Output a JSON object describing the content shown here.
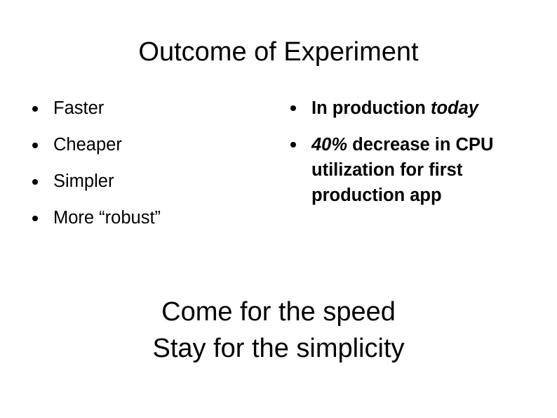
{
  "slide": {
    "title": "Outcome of Experiment",
    "left_bullets": [
      {
        "parts": [
          {
            "text": "Faster",
            "italic": false
          }
        ]
      },
      {
        "parts": [
          {
            "text": "Cheaper",
            "italic": false
          }
        ]
      },
      {
        "parts": [
          {
            "text": "Simpler",
            "italic": false
          }
        ]
      },
      {
        "parts": [
          {
            "text": "More “robust”",
            "italic": false
          }
        ]
      }
    ],
    "right_bullets": [
      {
        "parts": [
          {
            "text": "In production ",
            "italic": false
          },
          {
            "text": "today",
            "italic": true
          }
        ]
      },
      {
        "parts": [
          {
            "text": "40%",
            "italic": true
          },
          {
            "text": " decrease in CPU utilization for first production app",
            "italic": false
          }
        ]
      }
    ],
    "tagline": {
      "line1": "Come for the speed",
      "line2": "Stay for the simplicity"
    }
  }
}
